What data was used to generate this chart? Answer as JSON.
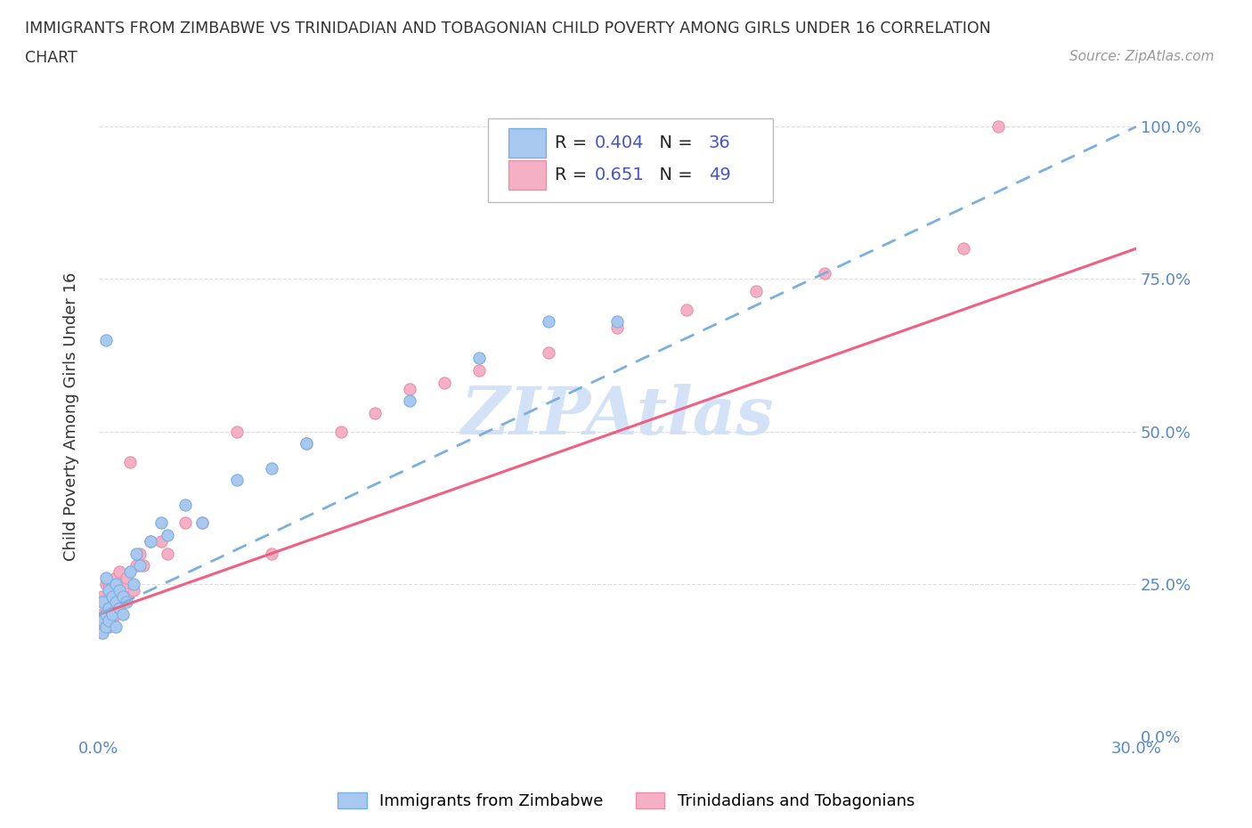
{
  "title_line1": "IMMIGRANTS FROM ZIMBABWE VS TRINIDADIAN AND TOBAGONIAN CHILD POVERTY AMONG GIRLS UNDER 16 CORRELATION",
  "title_line2": "CHART",
  "source": "Source: ZipAtlas.com",
  "ylabel": "Child Poverty Among Girls Under 16",
  "xlim": [
    0.0,
    0.3
  ],
  "ylim": [
    0.0,
    1.05
  ],
  "xtick_positions": [
    0.0,
    0.05,
    0.1,
    0.15,
    0.2,
    0.25,
    0.3
  ],
  "ytick_positions": [
    0.0,
    0.25,
    0.5,
    0.75,
    1.0
  ],
  "ytick_labels": [
    "0.0%",
    "25.0%",
    "50.0%",
    "75.0%",
    "100.0%"
  ],
  "xtick_labels_show": {
    "0.0": "0.0%",
    "0.30": "30.0%"
  },
  "zimbabwe_color": "#a8c8f0",
  "trinidad_color": "#f5b0c5",
  "zimbabwe_edge_color": "#7ab0e0",
  "trinidad_edge_color": "#e890a8",
  "zimbabwe_line_color": "#7ab0e0",
  "trinidad_line_color": "#f06080",
  "watermark_color": "#ccddf5",
  "legend_R_color": "#4455cc",
  "legend_N_color": "#4455cc",
  "R_zimbabwe": "0.404",
  "N_zimbabwe": "36",
  "R_trinidad": "0.651",
  "N_trinidad": "49",
  "background_color": "#ffffff",
  "grid_color": "#dddddd",
  "tick_label_color": "#5588cc",
  "title_color": "#333333",
  "ylabel_color": "#333333",
  "source_color": "#999999"
}
